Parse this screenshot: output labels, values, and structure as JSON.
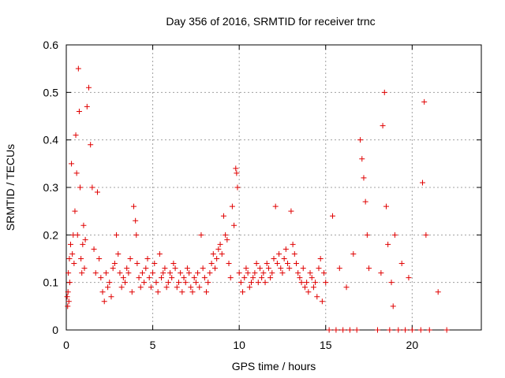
{
  "chart_data": {
    "type": "scatter",
    "title": "Day 356 of 2016, SRMTID for receiver trnc",
    "xlabel": "GPS time / hours",
    "ylabel": "SRMTID / TECUs",
    "xlim": [
      0,
      24
    ],
    "ylim": [
      0,
      0.6
    ],
    "xticks": [
      0,
      5,
      10,
      15,
      20
    ],
    "yticks": [
      0,
      0.1,
      0.2,
      0.3,
      0.4,
      0.5,
      0.6
    ],
    "xtick_labels": [
      "0",
      "5",
      "10",
      "15",
      "20"
    ],
    "ytick_labels": [
      "0",
      "0.1",
      "0.2",
      "0.3",
      "0.4",
      "0.5",
      "0.6"
    ],
    "grid": true,
    "marker": "+",
    "color": "#e00000",
    "series": [
      {
        "name": "SRMTID",
        "x": [
          0.05,
          0.08,
          0.1,
          0.12,
          0.15,
          0.18,
          0.2,
          0.25,
          0.3,
          0.35,
          0.4,
          0.45,
          0.5,
          0.55,
          0.6,
          0.65,
          0.7,
          0.75,
          0.8,
          0.85,
          0.9,
          0.95,
          1.0,
          1.05,
          1.1,
          1.2,
          1.3,
          1.4,
          1.5,
          1.6,
          1.7,
          1.8,
          1.9,
          2.0,
          2.1,
          2.2,
          2.3,
          2.4,
          2.5,
          2.6,
          2.7,
          2.8,
          2.9,
          3.0,
          3.1,
          3.2,
          3.3,
          3.4,
          3.5,
          3.6,
          3.7,
          3.8,
          3.9,
          4.0,
          4.05,
          4.1,
          4.2,
          4.3,
          4.4,
          4.5,
          4.6,
          4.7,
          4.8,
          4.9,
          5.0,
          5.1,
          5.2,
          5.3,
          5.4,
          5.5,
          5.6,
          5.7,
          5.8,
          5.9,
          6.0,
          6.1,
          6.2,
          6.3,
          6.4,
          6.5,
          6.6,
          6.7,
          6.8,
          6.9,
          7.0,
          7.1,
          7.2,
          7.3,
          7.4,
          7.5,
          7.6,
          7.7,
          7.8,
          7.9,
          8.0,
          8.1,
          8.2,
          8.3,
          8.4,
          8.5,
          8.6,
          8.7,
          8.8,
          8.9,
          9.0,
          9.1,
          9.2,
          9.3,
          9.4,
          9.5,
          9.6,
          9.7,
          9.8,
          9.85,
          9.9,
          10.0,
          10.1,
          10.2,
          10.3,
          10.4,
          10.5,
          10.6,
          10.7,
          10.8,
          10.9,
          11.0,
          11.1,
          11.2,
          11.3,
          11.4,
          11.5,
          11.6,
          11.7,
          11.8,
          11.9,
          12.0,
          12.1,
          12.2,
          12.3,
          12.4,
          12.5,
          12.6,
          12.7,
          12.8,
          12.9,
          13.0,
          13.1,
          13.2,
          13.3,
          13.4,
          13.5,
          13.6,
          13.7,
          13.8,
          13.9,
          14.0,
          14.1,
          14.2,
          14.3,
          14.4,
          14.5,
          14.6,
          14.7,
          14.8,
          14.9,
          15.0,
          15.2,
          15.4,
          15.6,
          15.8,
          16.0,
          16.2,
          16.4,
          16.6,
          16.8,
          17.0,
          17.1,
          17.2,
          17.3,
          17.4,
          17.5,
          18.0,
          18.2,
          18.3,
          18.4,
          18.5,
          18.6,
          18.7,
          18.8,
          18.9,
          19.0,
          19.2,
          19.4,
          19.6,
          19.8,
          20.0,
          20.5,
          20.6,
          20.7,
          20.8,
          21.0,
          21.5,
          22.0
        ],
        "y": [
          0.07,
          0.05,
          0.08,
          0.12,
          0.06,
          0.15,
          0.1,
          0.18,
          0.35,
          0.16,
          0.2,
          0.14,
          0.25,
          0.41,
          0.33,
          0.2,
          0.55,
          0.46,
          0.3,
          0.15,
          0.12,
          0.18,
          0.22,
          0.13,
          0.19,
          0.47,
          0.51,
          0.39,
          0.3,
          0.17,
          0.12,
          0.29,
          0.15,
          0.11,
          0.08,
          0.06,
          0.12,
          0.09,
          0.1,
          0.07,
          0.13,
          0.14,
          0.2,
          0.16,
          0.12,
          0.09,
          0.11,
          0.1,
          0.13,
          0.12,
          0.15,
          0.08,
          0.26,
          0.23,
          0.2,
          0.14,
          0.11,
          0.09,
          0.12,
          0.1,
          0.13,
          0.15,
          0.11,
          0.09,
          0.12,
          0.14,
          0.1,
          0.08,
          0.16,
          0.11,
          0.12,
          0.13,
          0.09,
          0.1,
          0.12,
          0.11,
          0.14,
          0.13,
          0.09,
          0.1,
          0.12,
          0.08,
          0.11,
          0.1,
          0.13,
          0.12,
          0.09,
          0.08,
          0.11,
          0.1,
          0.12,
          0.09,
          0.2,
          0.13,
          0.11,
          0.08,
          0.1,
          0.12,
          0.14,
          0.16,
          0.13,
          0.15,
          0.17,
          0.18,
          0.16,
          0.24,
          0.2,
          0.19,
          0.14,
          0.11,
          0.26,
          0.22,
          0.34,
          0.33,
          0.3,
          0.12,
          0.1,
          0.08,
          0.11,
          0.13,
          0.12,
          0.09,
          0.1,
          0.11,
          0.12,
          0.14,
          0.1,
          0.13,
          0.11,
          0.12,
          0.1,
          0.14,
          0.13,
          0.11,
          0.12,
          0.15,
          0.26,
          0.14,
          0.16,
          0.13,
          0.12,
          0.15,
          0.17,
          0.14,
          0.13,
          0.25,
          0.18,
          0.16,
          0.14,
          0.12,
          0.11,
          0.1,
          0.13,
          0.09,
          0.1,
          0.08,
          0.12,
          0.11,
          0.09,
          0.1,
          0.07,
          0.13,
          0.15,
          0.06,
          0.12,
          0.1,
          0.0,
          0.24,
          0.0,
          0.13,
          0.0,
          0.09,
          0.0,
          0.16,
          0.0,
          0.4,
          0.36,
          0.32,
          0.27,
          0.2,
          0.13,
          0.0,
          0.12,
          0.43,
          0.5,
          0.26,
          0.18,
          0.0,
          0.1,
          0.05,
          0.2,
          0.0,
          0.14,
          0.0,
          0.11,
          0.0,
          0.0,
          0.31,
          0.48,
          0.2,
          0.0,
          0.08,
          0.0
        ]
      }
    ]
  }
}
